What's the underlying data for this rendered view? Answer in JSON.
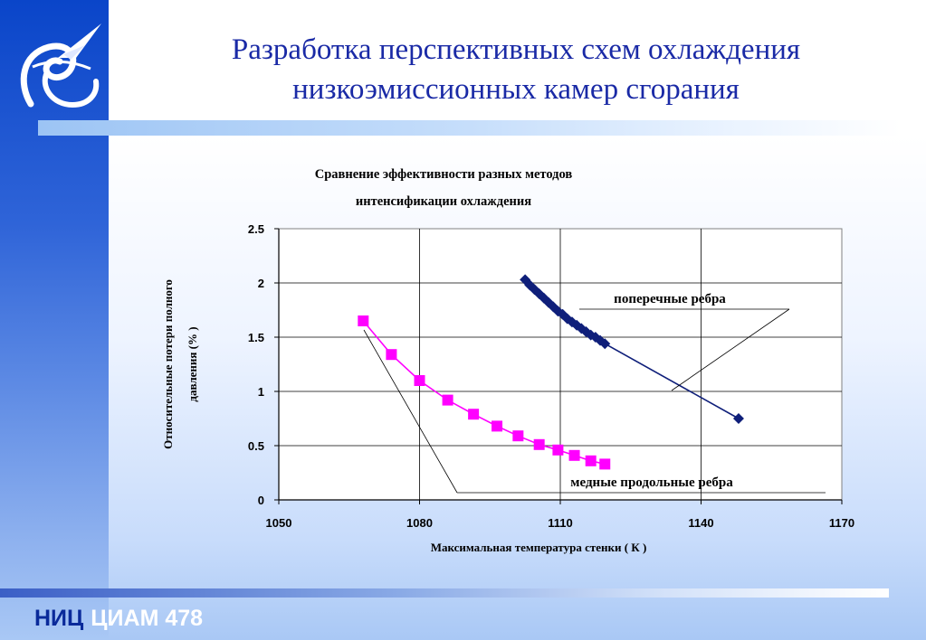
{
  "page": {
    "title_line1": "Разработка перспективных схем охлаждения",
    "title_line2": "низкоэмиссионных камер сгорания",
    "footer_nic": "НИЦ",
    "footer_rest": "ЦИАМ  478"
  },
  "colors": {
    "title": "#1a2aa6",
    "sidebar_top": "#0a45c9",
    "series_transverse": "#0f1f7a",
    "series_copper": "#ff00ff"
  },
  "icons": {
    "logo": "aircraft-emblem-icon"
  },
  "chart_data": {
    "type": "line",
    "title_line1": "Сравнение эффективности разных методов",
    "title_line2": "интенсификации охлаждения",
    "xlabel": "Максимальная температура стенки ( К )",
    "ylabel_line1": "Относительные потери полного",
    "ylabel_line2": "давления (% )",
    "xlim": [
      1050,
      1170
    ],
    "ylim": [
      0,
      2.5
    ],
    "x_ticks": [
      "1050",
      "1080",
      "1110",
      "1140",
      "1170"
    ],
    "y_ticks": [
      "0",
      "0.5",
      "1",
      "1.5",
      "2",
      "2.5"
    ],
    "grid": true,
    "series": [
      {
        "name": "поперечные ребра",
        "marker": "diamond",
        "color": "#0f1f7a",
        "x": [
          1102.5,
          1103.5,
          1104.5,
          1105.5,
          1106.5,
          1107.5,
          1108.5,
          1109.5,
          1110.5,
          1111.5,
          1112.5,
          1113.5,
          1114.5,
          1115.5,
          1116.5,
          1117.5,
          1118.5,
          1119.5,
          1148
        ],
        "y": [
          2.03,
          1.98,
          1.94,
          1.9,
          1.86,
          1.82,
          1.78,
          1.74,
          1.71,
          1.67,
          1.64,
          1.61,
          1.58,
          1.55,
          1.52,
          1.5,
          1.47,
          1.44,
          0.75
        ]
      },
      {
        "name": "медные продольные ребра",
        "marker": "square",
        "color": "#ff00ff",
        "x": [
          1068,
          1074,
          1080,
          1086,
          1091.5,
          1096.5,
          1101,
          1105.5,
          1109.5,
          1113,
          1116.5,
          1119.5
        ],
        "y": [
          1.65,
          1.34,
          1.1,
          0.92,
          0.79,
          0.68,
          0.59,
          0.51,
          0.46,
          0.41,
          0.36,
          0.33
        ]
      }
    ],
    "annotations": [
      {
        "text": "поперечные ребра",
        "series": 0
      },
      {
        "text": "медные продольные ребра",
        "series": 1
      }
    ]
  }
}
